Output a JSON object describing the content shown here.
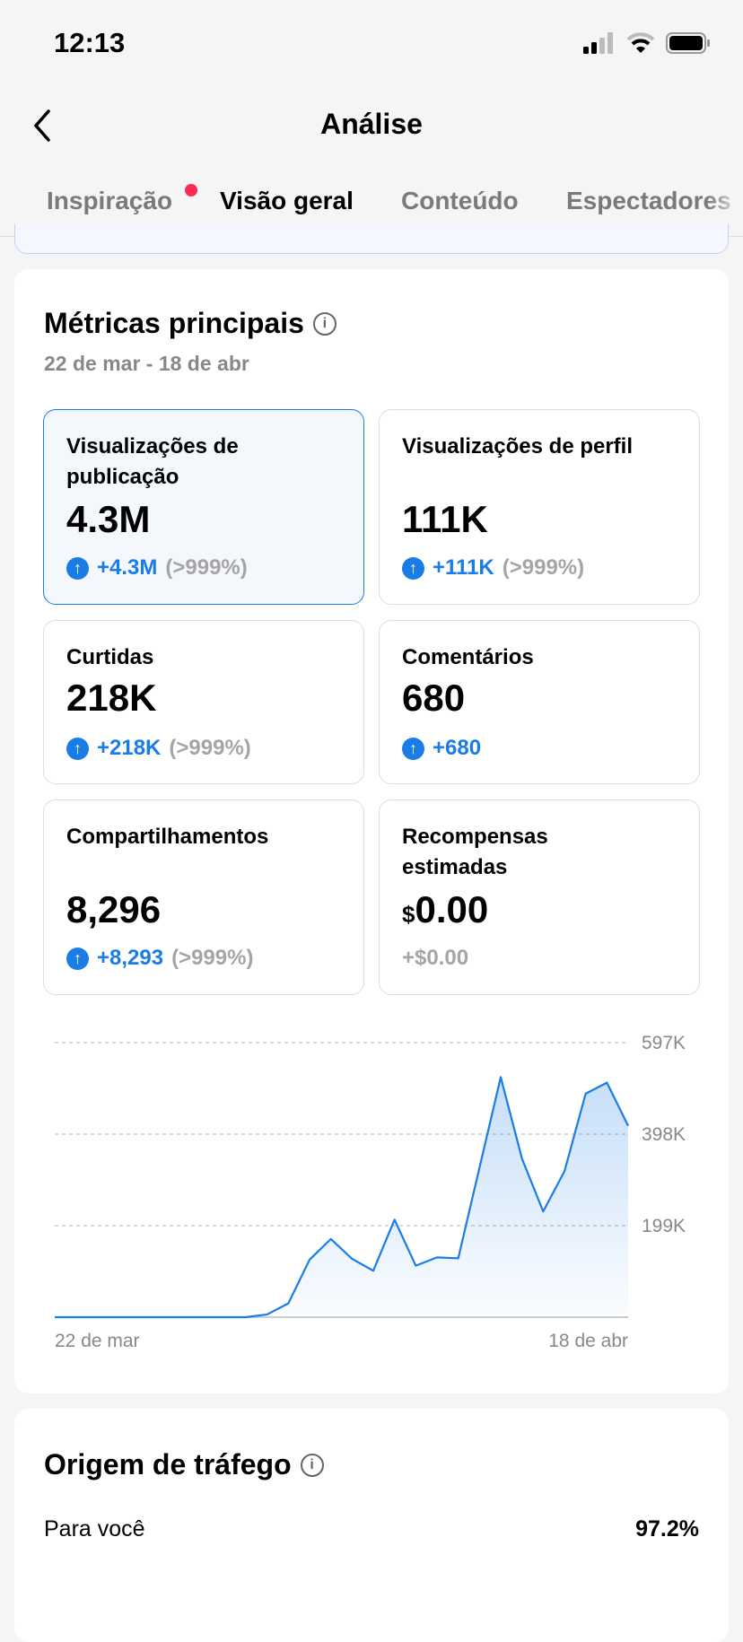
{
  "status_bar": {
    "time": "12:13"
  },
  "header": {
    "title": "Análise"
  },
  "tabs": [
    {
      "label": "Inspiração"
    },
    {
      "label": "Visão geral"
    },
    {
      "label": "Conteúdo"
    },
    {
      "label": "Espectadores"
    }
  ],
  "metrics": {
    "title": "Métricas principais",
    "date_range": "22 de mar - 18 de abr",
    "cards": [
      {
        "label": "Visualizações de publicação",
        "value": "4.3M",
        "change": "+4.3M",
        "pct": "(>999%)"
      },
      {
        "label": "Visualizações de perfil",
        "value": "111K",
        "change": "+111K",
        "pct": "(>999%)"
      },
      {
        "label": "Curtidas",
        "value": "218K",
        "change": "+218K",
        "pct": "(>999%)"
      },
      {
        "label": "Comentários",
        "value": "680",
        "change": "+680",
        "pct": ""
      },
      {
        "label": "Compartilhamentos",
        "value": "8,296",
        "change": "+8,293",
        "pct": "(>999%)"
      },
      {
        "label": "Recompensas estimadas",
        "currency": "$",
        "value": "0.00",
        "change": "+$0.00",
        "pct": ""
      }
    ]
  },
  "chart_data": {
    "type": "area",
    "series": [
      {
        "name": "Visualizações de publicação",
        "values": [
          0,
          0,
          0,
          0,
          0,
          0,
          0,
          0,
          0,
          0,
          6000,
          30000,
          125000,
          170000,
          127000,
          101000,
          212000,
          112000,
          130000,
          128000,
          325000,
          522000,
          345000,
          230000,
          317000,
          486000,
          510000,
          416000
        ]
      }
    ],
    "x_labels": [
      "22 de mar",
      "18 de abr"
    ],
    "y_ticks": [
      {
        "value": 199000,
        "label": "199K"
      },
      {
        "value": 398000,
        "label": "398K"
      },
      {
        "value": 597000,
        "label": "597K"
      }
    ],
    "ylim": [
      0,
      597000
    ],
    "grid": true,
    "color": "#1a7ce6"
  },
  "traffic": {
    "title": "Origem de tráfego",
    "rows": [
      {
        "label": "Para você",
        "value": "97.2%"
      }
    ]
  }
}
